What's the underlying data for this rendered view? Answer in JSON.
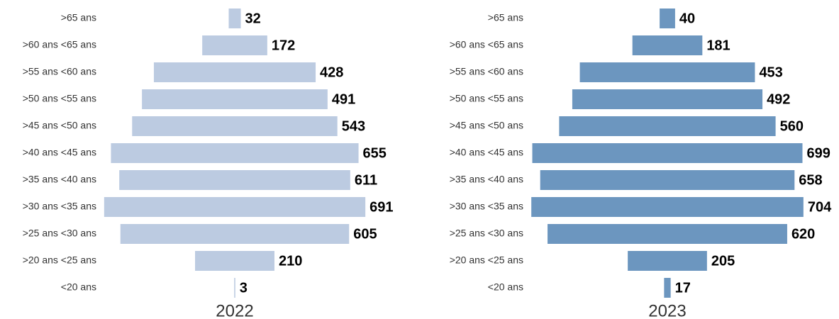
{
  "chart_data": [
    {
      "type": "centered-bar",
      "title": "2022",
      "color": "#bccbe1",
      "categories": [
        ">65 ans",
        ">60 ans <65 ans",
        ">55 ans <60 ans",
        ">50 ans <55 ans",
        ">45 ans <50 ans",
        ">40 ans <45 ans",
        ">35 ans <40 ans",
        ">30 ans <35 ans",
        ">25 ans <30 ans",
        ">20 ans <25 ans",
        "<20 ans"
      ],
      "values": [
        32,
        172,
        428,
        491,
        543,
        655,
        611,
        691,
        605,
        210,
        3
      ]
    },
    {
      "type": "centered-bar",
      "title": "2023",
      "color": "#6c96bf",
      "categories": [
        ">65 ans",
        ">60 ans <65 ans",
        ">55 ans <60 ans",
        ">50 ans <55 ans",
        ">45 ans <50 ans",
        ">40 ans <45 ans",
        ">35 ans <40 ans",
        ">30 ans <35 ans",
        ">25 ans <30 ans",
        ">20 ans <25 ans",
        "<20 ans"
      ],
      "values": [
        40,
        181,
        453,
        492,
        560,
        699,
        658,
        704,
        620,
        205,
        17
      ]
    }
  ]
}
